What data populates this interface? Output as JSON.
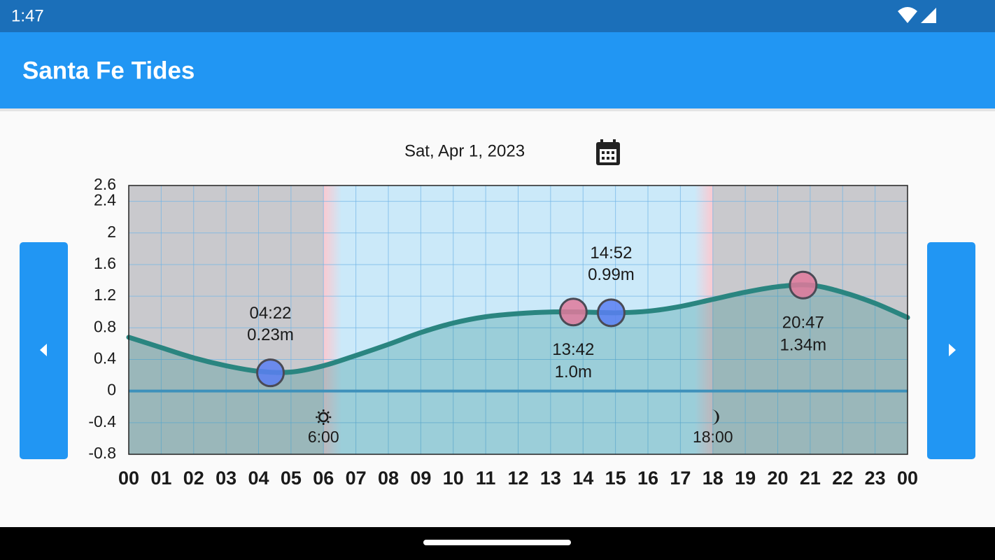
{
  "status_bar": {
    "time": "1:47"
  },
  "app_bar": {
    "title": "Santa Fe Tides"
  },
  "date": "Sat, Apr 1, 2023",
  "chart_data": {
    "type": "line",
    "x": [
      0,
      1,
      2,
      3,
      4,
      5,
      6,
      7,
      8,
      9,
      10,
      11,
      12,
      13,
      14,
      15,
      16,
      17,
      18,
      19,
      20,
      21,
      22,
      23,
      24
    ],
    "values": [
      0.68,
      0.55,
      0.42,
      0.32,
      0.25,
      0.24,
      0.32,
      0.45,
      0.59,
      0.74,
      0.86,
      0.94,
      0.98,
      1.0,
      1.0,
      0.99,
      1.01,
      1.07,
      1.16,
      1.25,
      1.32,
      1.34,
      1.25,
      1.11,
      0.93
    ],
    "color": "#2a8580",
    "area_color": "#1f8a8a",
    "xlim": [
      0,
      24
    ],
    "xticks": [
      {
        "value": 0,
        "label": "00"
      },
      {
        "value": 1,
        "label": "01"
      },
      {
        "value": 2,
        "label": "02"
      },
      {
        "value": 3,
        "label": "03"
      },
      {
        "value": 4,
        "label": "04"
      },
      {
        "value": 5,
        "label": "05"
      },
      {
        "value": 6,
        "label": "06"
      },
      {
        "value": 7,
        "label": "07"
      },
      {
        "value": 8,
        "label": "08"
      },
      {
        "value": 9,
        "label": "09"
      },
      {
        "value": 10,
        "label": "10"
      },
      {
        "value": 11,
        "label": "11"
      },
      {
        "value": 12,
        "label": "12"
      },
      {
        "value": 13,
        "label": "13"
      },
      {
        "value": 14,
        "label": "14"
      },
      {
        "value": 15,
        "label": "15"
      },
      {
        "value": 16,
        "label": "16"
      },
      {
        "value": 17,
        "label": "17"
      },
      {
        "value": 18,
        "label": "18"
      },
      {
        "value": 19,
        "label": "19"
      },
      {
        "value": 20,
        "label": "20"
      },
      {
        "value": 21,
        "label": "21"
      },
      {
        "value": 22,
        "label": "22"
      },
      {
        "value": 23,
        "label": "23"
      },
      {
        "value": 24,
        "label": "00"
      }
    ],
    "ylim": [
      -0.8,
      2.6
    ],
    "yticks": [
      -0.8,
      -0.4,
      0,
      0.4,
      0.8,
      1.2,
      1.6,
      2,
      2.4,
      2.6
    ],
    "grid": true,
    "zero_line": true,
    "extremes": {
      "times": [
        "04:22",
        "13:42",
        "14:52",
        "20:47"
      ],
      "values": [
        0.23,
        1.0,
        0.99,
        1.34
      ],
      "value_labels": [
        "0.23m",
        "1.0m",
        "0.99m",
        "1.34m"
      ],
      "kinds": [
        "low",
        "high",
        "low",
        "high"
      ]
    },
    "marker_colors": {
      "low": "#5b7ff2",
      "high": "#e0799b"
    },
    "sunrise": "6:00",
    "sunset": "18:00",
    "night_color": "#c9c9cd",
    "day_color": "#cbe9f9",
    "twilight_color": "#fbc9d0"
  }
}
